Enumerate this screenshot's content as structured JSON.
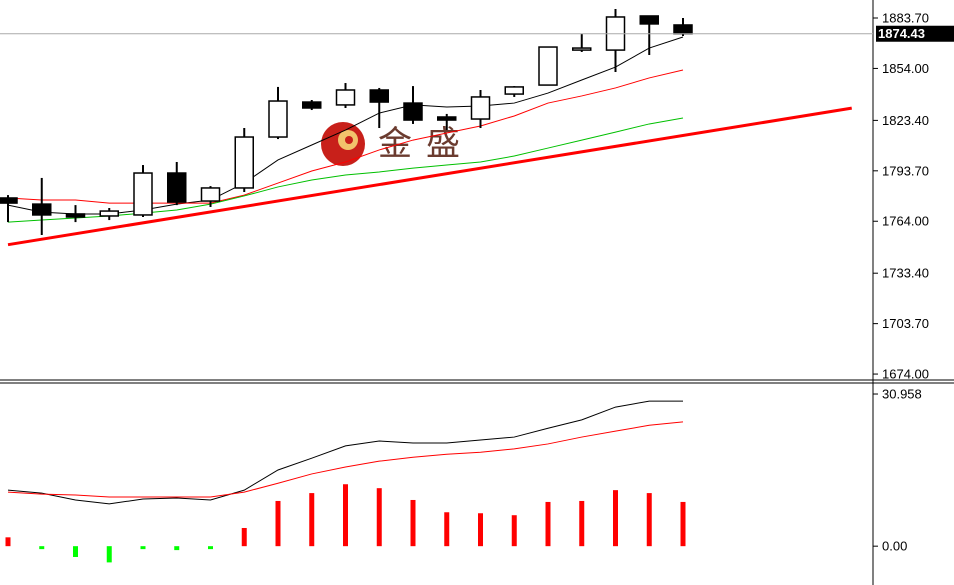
{
  "chart_data": [
    {
      "type": "candlestick",
      "watermark": "金盛",
      "open": [
        1777.7,
        1774.1,
        1768.3,
        1767.1,
        1767.7,
        1792.4,
        1775.9,
        1783.6,
        1813.6,
        1834.2,
        1832.5,
        1841.3,
        1833.6,
        1825.4,
        1824.2,
        1838.9,
        1844.2,
        1864.8,
        1864.8,
        1884.9,
        1879.6
      ],
      "high": [
        1779.4,
        1789.5,
        1773.5,
        1771.8,
        1797.1,
        1798.9,
        1784.7,
        1818.9,
        1843.1,
        1835.4,
        1845.4,
        1842.5,
        1843.6,
        1827.2,
        1841.3,
        1843.6,
        1866.6,
        1874.3,
        1889.0,
        1884.9,
        1883.7
      ],
      "low": [
        1763.5,
        1755.9,
        1763.5,
        1764.7,
        1766.5,
        1773.5,
        1772.4,
        1781.2,
        1812.4,
        1829.5,
        1830.7,
        1818.9,
        1821.3,
        1817.7,
        1818.9,
        1837.2,
        1844.2,
        1863.7,
        1851.9,
        1861.9,
        1873.1
      ],
      "close": [
        1774.7,
        1767.7,
        1766.5,
        1770.0,
        1792.4,
        1775.3,
        1783.6,
        1813.6,
        1834.8,
        1830.7,
        1841.3,
        1834.2,
        1823.6,
        1823.6,
        1837.2,
        1843.1,
        1866.6,
        1866.0,
        1884.3,
        1880.2,
        1874.43
      ],
      "lines": [
        {
          "color": "#000000",
          "values": [
            1773.5,
            1769.4,
            1768.3,
            1768.3,
            1770.6,
            1774.1,
            1776.5,
            1786.5,
            1800.1,
            1808.9,
            1817.7,
            1827.7,
            1832.5,
            1831.3,
            1831.9,
            1833.6,
            1839.5,
            1847.2,
            1854.8,
            1866.0,
            1872.5
          ]
        },
        {
          "color": "#ff0000",
          "values": [
            1777.7,
            1776.5,
            1776.5,
            1774.7,
            1774.7,
            1774.7,
            1774.7,
            1779.4,
            1786.5,
            1793.6,
            1798.9,
            1806.0,
            1811.8,
            1816.0,
            1820.1,
            1826.0,
            1833.6,
            1837.8,
            1842.5,
            1848.4,
            1853.1
          ]
        },
        {
          "color": "#00c000",
          "values": [
            1763.5,
            1764.7,
            1765.9,
            1767.1,
            1768.8,
            1770.6,
            1774.1,
            1778.9,
            1784.2,
            1788.3,
            1791.2,
            1793.0,
            1795.3,
            1797.1,
            1798.9,
            1802.4,
            1807.1,
            1811.8,
            1816.5,
            1821.3,
            1824.8
          ]
        }
      ],
      "trend_line": {
        "color": "#ff0000",
        "x": [
          0,
          25
        ],
        "values": [
          1750.2,
          1830.6
        ]
      },
      "last_price": 1874.43,
      "ylim": [
        1670.5,
        1894.3
      ],
      "yticks": [
        {
          "value": 1883.7,
          "label": "1883.70"
        },
        {
          "value": 1854.0,
          "label": "1854.00"
        },
        {
          "value": 1823.4,
          "label": "1823.40"
        },
        {
          "value": 1793.7,
          "label": "1793.70"
        },
        {
          "value": 1764.0,
          "label": "1764.00"
        },
        {
          "value": 1733.4,
          "label": "1733.40"
        },
        {
          "value": 1703.7,
          "label": "1703.70"
        },
        {
          "value": 1674.0,
          "label": "1674.00"
        }
      ]
    },
    {
      "type": "macd",
      "histogram": {
        "color": "#ff0000",
        "negative_color": "#00ff00",
        "values": [
          1.8,
          -0.6,
          -2.2,
          -3.3,
          -0.6,
          -0.8,
          -0.6,
          3.7,
          9.2,
          10.8,
          12.6,
          11.8,
          9.4,
          6.9,
          6.7,
          6.3,
          9.0,
          9.2,
          11.4,
          10.8,
          9.0
        ]
      },
      "lines": [
        {
          "color": "#000000",
          "values": [
            11.4,
            10.8,
            9.4,
            8.6,
            9.6,
            9.8,
            9.4,
            11.4,
            15.5,
            17.9,
            20.4,
            21.4,
            21.0,
            21.0,
            21.6,
            22.2,
            24.0,
            25.7,
            28.3,
            29.5,
            29.5
          ]
        },
        {
          "color": "#ff0000",
          "values": [
            11.0,
            10.6,
            10.4,
            10.0,
            10.0,
            10.0,
            10.0,
            11.0,
            12.8,
            14.7,
            16.1,
            17.3,
            18.1,
            18.7,
            19.1,
            19.8,
            20.8,
            22.2,
            23.4,
            24.6,
            25.3
          ]
        }
      ],
      "ylim": [
        -7.9,
        33.2
      ],
      "yticks": [
        30.958,
        {
          "value": 0,
          "label": "0.00"
        }
      ]
    }
  ]
}
